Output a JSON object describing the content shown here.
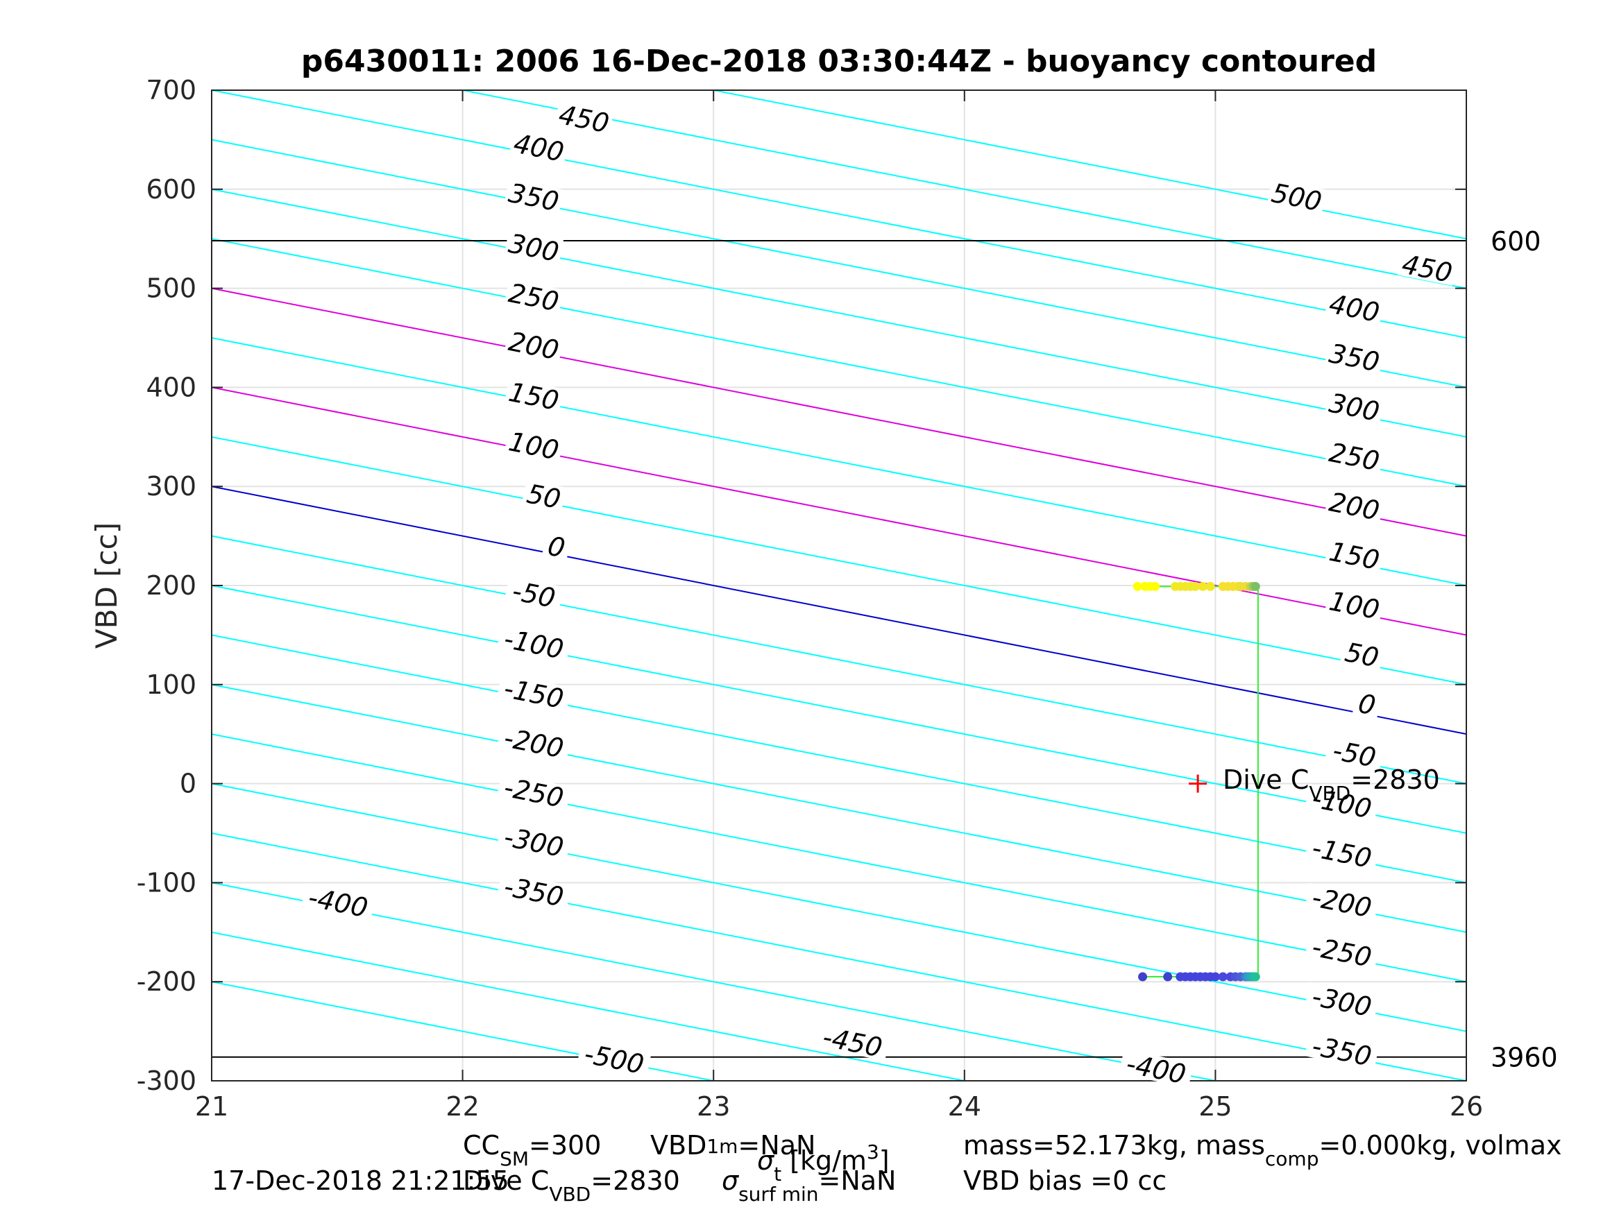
{
  "chart_data": {
    "type": "line",
    "title": "p6430011:  2006 16-Dec-2018 03:30:44Z - buoyancy contoured",
    "ylabel": "VBD [cc]",
    "xlim": [
      21,
      26
    ],
    "ylim": [
      -300,
      700
    ],
    "x_ticks": [
      "21",
      "22",
      "23",
      "24",
      "25",
      "26"
    ],
    "y_ticks": [
      "-300",
      "-200",
      "-100",
      "0",
      "100",
      "200",
      "300",
      "400",
      "500",
      "600",
      "700"
    ],
    "grid": true,
    "contour_slope": -50,
    "contours": [
      {
        "level": -500,
        "value_at_21": -200,
        "color": "#00ffff"
      },
      {
        "level": -450,
        "value_at_21": -150,
        "color": "#00ffff"
      },
      {
        "level": -400,
        "value_at_21": -100,
        "color": "#00ffff"
      },
      {
        "level": -350,
        "value_at_21": -50,
        "color": "#00ffff"
      },
      {
        "level": -300,
        "value_at_21": 0,
        "color": "#00ffff"
      },
      {
        "level": -250,
        "value_at_21": 50,
        "color": "#00ffff"
      },
      {
        "level": -200,
        "value_at_21": 100,
        "color": "#00ffff"
      },
      {
        "level": -150,
        "value_at_21": 150,
        "color": "#00ffff"
      },
      {
        "level": -100,
        "value_at_21": 200,
        "color": "#00ffff"
      },
      {
        "level": -50,
        "value_at_21": 250,
        "color": "#00ffff"
      },
      {
        "level": 0,
        "value_at_21": 300,
        "color": "#0000cc"
      },
      {
        "level": 50,
        "value_at_21": 350,
        "color": "#00ffff"
      },
      {
        "level": 100,
        "value_at_21": 400,
        "color": "#dd00dd"
      },
      {
        "level": 150,
        "value_at_21": 450,
        "color": "#00ffff"
      },
      {
        "level": 200,
        "value_at_21": 500,
        "color": "#dd00dd"
      },
      {
        "level": 250,
        "value_at_21": 550,
        "color": "#00ffff"
      },
      {
        "level": 300,
        "value_at_21": 600,
        "color": "#00ffff"
      },
      {
        "level": 350,
        "value_at_21": 650,
        "color": "#00ffff"
      },
      {
        "level": 400,
        "value_at_21": 700,
        "color": "#00ffff"
      },
      {
        "level": 450,
        "value_at_21": 750,
        "color": "#00ffff"
      },
      {
        "level": 500,
        "value_at_21": 800,
        "color": "#00ffff"
      }
    ],
    "contour_labels": [
      {
        "text": "450",
        "x": 22.48,
        "y": 666
      },
      {
        "text": "400",
        "x": 22.3,
        "y": 637
      },
      {
        "text": "350",
        "x": 22.28,
        "y": 587
      },
      {
        "text": "300",
        "x": 22.28,
        "y": 536
      },
      {
        "text": "250",
        "x": 22.28,
        "y": 486
      },
      {
        "text": "200",
        "x": 22.28,
        "y": 437
      },
      {
        "text": "150",
        "x": 22.28,
        "y": 386
      },
      {
        "text": "100",
        "x": 22.28,
        "y": 336
      },
      {
        "text": "50",
        "x": 22.32,
        "y": 285
      },
      {
        "text": "0",
        "x": 22.37,
        "y": 234
      },
      {
        "text": "-50",
        "x": 22.28,
        "y": 186
      },
      {
        "text": "-100",
        "x": 22.28,
        "y": 136
      },
      {
        "text": "-150",
        "x": 22.28,
        "y": 86
      },
      {
        "text": "-200",
        "x": 22.28,
        "y": 36
      },
      {
        "text": "-250",
        "x": 22.28,
        "y": -14
      },
      {
        "text": "-300",
        "x": 22.28,
        "y": -64
      },
      {
        "text": "-350",
        "x": 22.28,
        "y": -114
      },
      {
        "text": "-400",
        "x": 21.5,
        "y": -125
      },
      {
        "text": "-500",
        "x": 22.6,
        "y": -283
      },
      {
        "text": "-450",
        "x": 23.55,
        "y": -266
      },
      {
        "text": "-400",
        "x": 24.76,
        "y": -293
      },
      {
        "text": "500",
        "x": 25.32,
        "y": 587
      },
      {
        "text": "450",
        "x": 25.84,
        "y": 515
      },
      {
        "text": "400",
        "x": 25.55,
        "y": 475
      },
      {
        "text": "350",
        "x": 25.55,
        "y": 425
      },
      {
        "text": "300",
        "x": 25.55,
        "y": 375
      },
      {
        "text": "250",
        "x": 25.55,
        "y": 325
      },
      {
        "text": "200",
        "x": 25.55,
        "y": 275
      },
      {
        "text": "150",
        "x": 25.55,
        "y": 225
      },
      {
        "text": "100",
        "x": 25.55,
        "y": 175
      },
      {
        "text": "50",
        "x": 25.58,
        "y": 125
      },
      {
        "text": "0",
        "x": 25.6,
        "y": 75
      },
      {
        "text": "-50",
        "x": 25.55,
        "y": 25
      },
      {
        "text": "-100",
        "x": 25.5,
        "y": -25
      },
      {
        "text": "-150",
        "x": 25.5,
        "y": -75
      },
      {
        "text": "-200",
        "x": 25.5,
        "y": -125
      },
      {
        "text": "-250",
        "x": 25.5,
        "y": -175
      },
      {
        "text": "-300",
        "x": 25.5,
        "y": -225
      },
      {
        "text": "-350",
        "x": 25.5,
        "y": -275
      }
    ],
    "hlines": [
      {
        "y": 548,
        "label": "600"
      },
      {
        "y": -276,
        "label": "3960"
      }
    ],
    "trajectory": {
      "color": "#33ee33",
      "points": [
        [
          24.7,
          199
        ],
        [
          25.15,
          199
        ],
        [
          25.17,
          196
        ],
        [
          25.17,
          -195
        ],
        [
          25.15,
          -195
        ],
        [
          24.7,
          -195
        ]
      ]
    },
    "samples_top": {
      "y": 199,
      "x": [
        24.69,
        24.72,
        24.74,
        24.76,
        24.84,
        24.86,
        24.88,
        24.9,
        24.92,
        24.95,
        24.98,
        25.03,
        25.05,
        25.07,
        25.09,
        25.1,
        25.12,
        25.14,
        25.15,
        25.16
      ],
      "colors": [
        "#ffff00",
        "#ffff00",
        "#ffff00",
        "#ffff00",
        "#f2e828",
        "#f2e828",
        "#f2e828",
        "#f2e828",
        "#f2e828",
        "#f2e828",
        "#f2e828",
        "#f5e030",
        "#f5e030",
        "#f5e030",
        "#f5e030",
        "#eedd33",
        "#eedd33",
        "#c8d44a",
        "#a0cc55",
        "#7cbf66"
      ]
    },
    "samples_bottom": {
      "y": -195,
      "x": [
        24.71,
        24.81,
        24.86,
        24.88,
        24.9,
        24.92,
        24.94,
        24.96,
        24.98,
        25.0,
        25.03,
        25.06,
        25.08,
        25.1,
        25.12,
        25.13,
        25.14,
        25.15,
        25.16
      ],
      "colors": [
        "#4040cc",
        "#4040cc",
        "#4444dd",
        "#4444dd",
        "#4444dd",
        "#4444dd",
        "#4444dd",
        "#4444dd",
        "#4444dd",
        "#4444dd",
        "#4848dd",
        "#4848dd",
        "#4a55dd",
        "#4a60d8",
        "#3f7fd0",
        "#3399cc",
        "#2aa8bb",
        "#22b5aa",
        "#22c099"
      ]
    },
    "marker": {
      "x": 24.93,
      "y": 0,
      "symbol": "+",
      "color": "#ff0000"
    },
    "marker_label": {
      "prefix": "Dive C",
      "sub": "VBD",
      "suffix": "=2830"
    }
  },
  "footer": {
    "line1a_pre": "CC",
    "line1a_sub": "SM",
    "line1a_post": "=300",
    "line1b_pre": "VBD",
    "line1b_sub": "1m",
    "line1b_post": "=NaN",
    "line2_date": "17-Dec-2018 21:21:55",
    "line2b_pre": "Dive C",
    "line2b_sub": "VBD",
    "line2b_post": "=2830",
    "xlabel_sigma": "σ",
    "xlabel_sub": "t",
    "xlabel_unit_pre": "[kg/m",
    "xlabel_unit_sup": "3",
    "xlabel_unit_post": "]",
    "line2c_pre": "σ",
    "line2c_sub": "surf min",
    "line2c_post": "=NaN",
    "mass_pre": "mass=52.173kg, mass",
    "mass_sub": "comp",
    "mass_post": "=0.000kg, volmax",
    "vbd_bias": "VBD bias =0 cc"
  }
}
